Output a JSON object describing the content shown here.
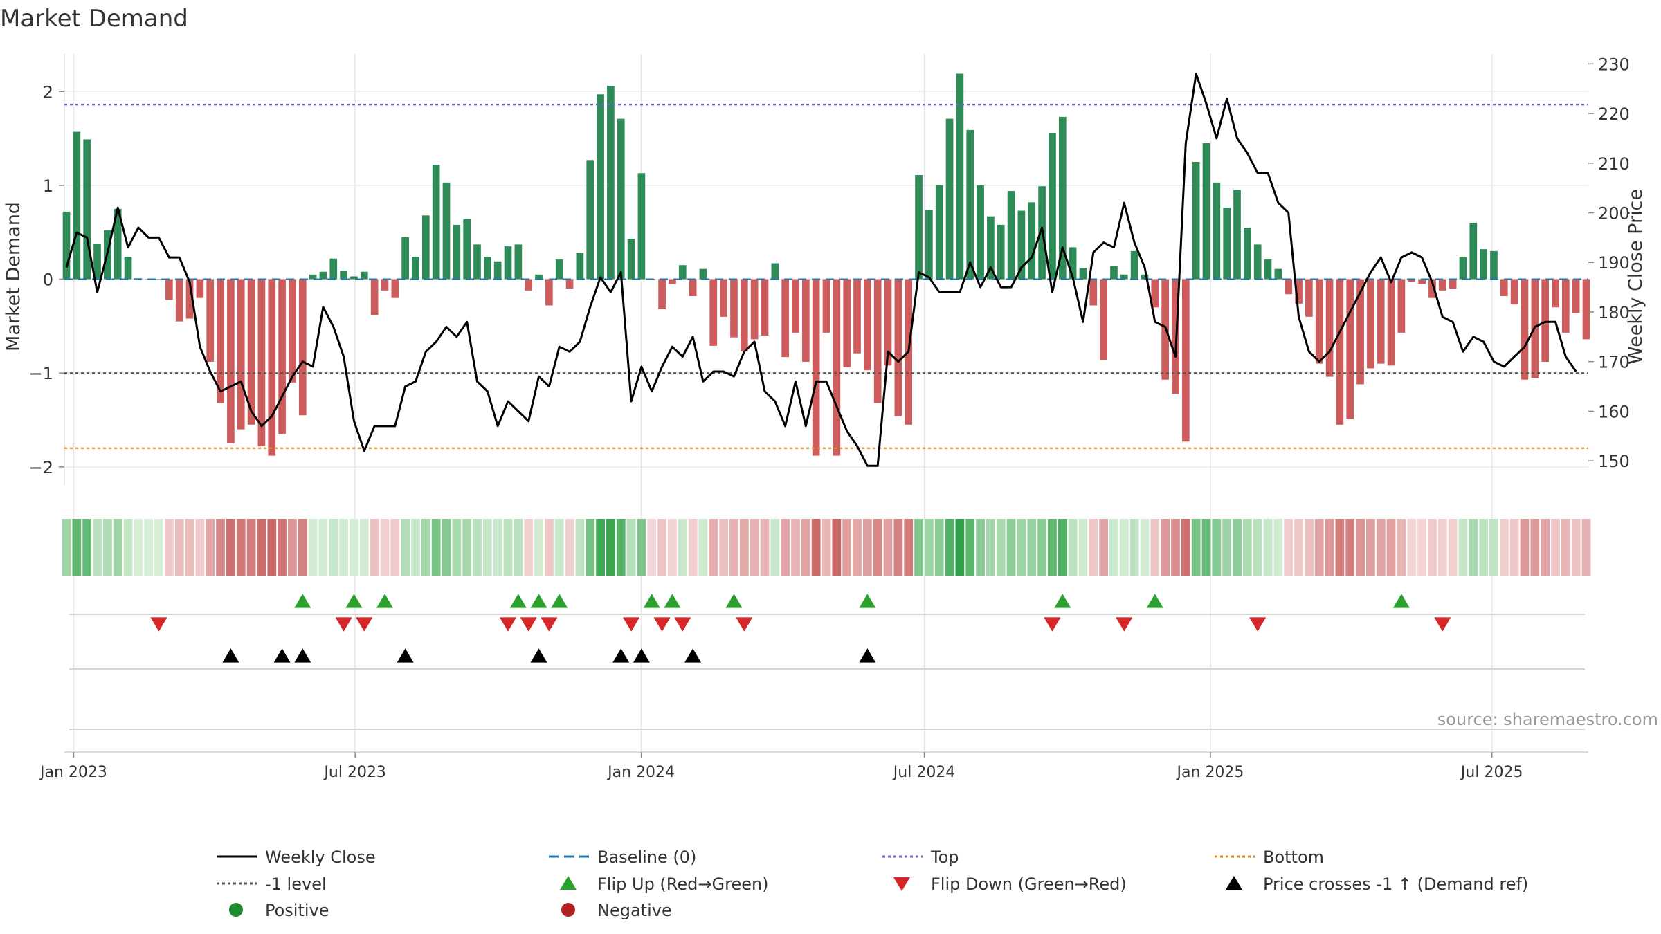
{
  "chart_data": {
    "type": "bar",
    "title": "Market Demand",
    "ylabel": "Market Demand",
    "y2label": "Weekly Close Price",
    "ylim": [
      -2.2,
      2.4
    ],
    "y2lim": [
      145,
      232
    ],
    "yticks": [
      -2,
      -1,
      0,
      1,
      2
    ],
    "y2ticks": [
      150,
      160,
      170,
      180,
      190,
      200,
      210,
      220,
      230
    ],
    "reference_levels": {
      "baseline": 0,
      "top": 1.86,
      "minus_one": -1,
      "bottom": -1.8
    },
    "x_start": "2022-12-26",
    "x_end": "2025-09-01",
    "x_ticks": [
      {
        "date": "2023-01-01",
        "label": "Jan 2023"
      },
      {
        "date": "2023-07-01",
        "label": "Jul 2023"
      },
      {
        "date": "2024-01-01",
        "label": "Jan 2024"
      },
      {
        "date": "2024-07-01",
        "label": "Jul 2024"
      },
      {
        "date": "2025-01-01",
        "label": "Jan 2025"
      },
      {
        "date": "2025-07-01",
        "label": "Jul 2025"
      }
    ],
    "demand": [
      0.72,
      1.57,
      1.49,
      0.38,
      0.52,
      0.75,
      0.24,
      0.01,
      0,
      0,
      -0.22,
      -0.45,
      -0.42,
      -0.2,
      -0.88,
      -1.32,
      -1.75,
      -1.6,
      -1.55,
      -1.78,
      -1.88,
      -1.65,
      -1.1,
      -1.45,
      0.05,
      0.08,
      0.22,
      0.09,
      0.03,
      0.08,
      -0.38,
      -0.12,
      -0.2,
      0.45,
      0.24,
      0.68,
      1.22,
      1.03,
      0.58,
      0.64,
      0.37,
      0.24,
      0.19,
      0.35,
      0.37,
      -0.12,
      0.05,
      -0.28,
      0.21,
      -0.1,
      0.28,
      1.27,
      1.97,
      2.06,
      1.71,
      0.43,
      1.13,
      -0.01,
      -0.32,
      -0.05,
      0.15,
      -0.18,
      0.11,
      -0.71,
      -0.4,
      -0.62,
      -0.77,
      -0.64,
      -0.6,
      0.17,
      -0.83,
      -0.57,
      -0.88,
      -1.88,
      -0.57,
      -1.88,
      -0.94,
      -0.79,
      -0.97,
      -1.32,
      -0.92,
      -1.46,
      -1.55,
      1.11,
      0.74,
      1.0,
      1.71,
      2.19,
      1.59,
      1.0,
      0.67,
      0.58,
      0.94,
      0.73,
      0.82,
      0.99,
      1.56,
      1.73,
      0.34,
      0.12,
      -0.28,
      -0.86,
      0.14,
      0.05,
      0.3,
      0.05,
      -0.3,
      -1.07,
      -1.22,
      -1.73,
      1.25,
      1.45,
      1.03,
      0.76,
      0.95,
      0.55,
      0.37,
      0.21,
      0.11,
      -0.16,
      -0.26,
      -0.4,
      -0.9,
      -1.04,
      -1.55,
      -1.49,
      -1.12,
      -0.95,
      -0.9,
      -0.92,
      -0.57,
      -0.03,
      -0.05,
      -0.2,
      -0.12,
      -0.1,
      0.24,
      0.6,
      0.32,
      0.3,
      -0.18,
      -0.27,
      -1.07,
      -1.05,
      -0.88,
      -0.3,
      -0.57,
      -0.36,
      -0.64
    ],
    "price": [
      189,
      196,
      195,
      184,
      192,
      201,
      193,
      197,
      195,
      195,
      191,
      191,
      186,
      173,
      168,
      164,
      165,
      166,
      160,
      157,
      159,
      163,
      167,
      170,
      169,
      181,
      177,
      171,
      158,
      152,
      157,
      157,
      157,
      165,
      166,
      172,
      174,
      177,
      175,
      178,
      166,
      164,
      157,
      162,
      160,
      158,
      167,
      165,
      173,
      172,
      174,
      181,
      187,
      184,
      188,
      162,
      169,
      164,
      169,
      173,
      171,
      175,
      166,
      168,
      168,
      167,
      172,
      174,
      164,
      162,
      157,
      166,
      157,
      166,
      166,
      161,
      156,
      153,
      149,
      149,
      172,
      170,
      172,
      188,
      187,
      184,
      184,
      184,
      190,
      185,
      189,
      185,
      185,
      189,
      191,
      197,
      184,
      193,
      187,
      178,
      192,
      194,
      193,
      202,
      194,
      189,
      178,
      177,
      171,
      214,
      228,
      222,
      215,
      223,
      215,
      212,
      208,
      208,
      202,
      200,
      179,
      172,
      170,
      172,
      176,
      180,
      184,
      188,
      191,
      186,
      191,
      192,
      191,
      186,
      179,
      178,
      172,
      175,
      174,
      170,
      169,
      171,
      173,
      177,
      178,
      178,
      171,
      168
    ],
    "flip_up_idx": [
      23,
      28,
      31,
      44,
      46,
      48,
      57,
      59,
      65,
      78,
      97,
      106,
      130
    ],
    "flip_down_idx": [
      9,
      27,
      29,
      43,
      45,
      47,
      55,
      58,
      60,
      66,
      96,
      103,
      116,
      134
    ],
    "price_cross_idx": [
      16,
      21,
      23,
      33,
      46,
      54,
      56,
      61,
      78
    ],
    "source_text": "source: sharemaestro.com",
    "legend": [
      {
        "label": "Weekly Close",
        "kind": "line-solid",
        "color": "#000000"
      },
      {
        "label": "Baseline (0)",
        "kind": "line-dash",
        "color": "#1f77b4"
      },
      {
        "label": "Top",
        "kind": "line-dot",
        "color": "#6a6ad0"
      },
      {
        "label": "Bottom",
        "kind": "line-dot",
        "color": "#e08a1e"
      },
      {
        "label": "-1 level",
        "kind": "line-dot",
        "color": "#555555"
      },
      {
        "label": "Flip Up (Red→Green)",
        "kind": "tri-up",
        "color": "#2ca02c"
      },
      {
        "label": "Flip Down (Green→Red)",
        "kind": "tri-down",
        "color": "#d62728"
      },
      {
        "label": "Price crosses -1 ↑ (Demand ref)",
        "kind": "tri-up",
        "color": "#000000"
      },
      {
        "label": "Positive",
        "kind": "dot",
        "color": "#1e8c2e"
      },
      {
        "label": "Negative",
        "kind": "dot",
        "color": "#b22222"
      }
    ],
    "colors": {
      "positive_bar": "#2e8b57",
      "negative_bar": "#cd5c5c",
      "price_line": "#000000",
      "flip_up": "#2ca02c",
      "flip_down": "#d62728",
      "cross_marker": "#000000"
    },
    "grid": true
  }
}
